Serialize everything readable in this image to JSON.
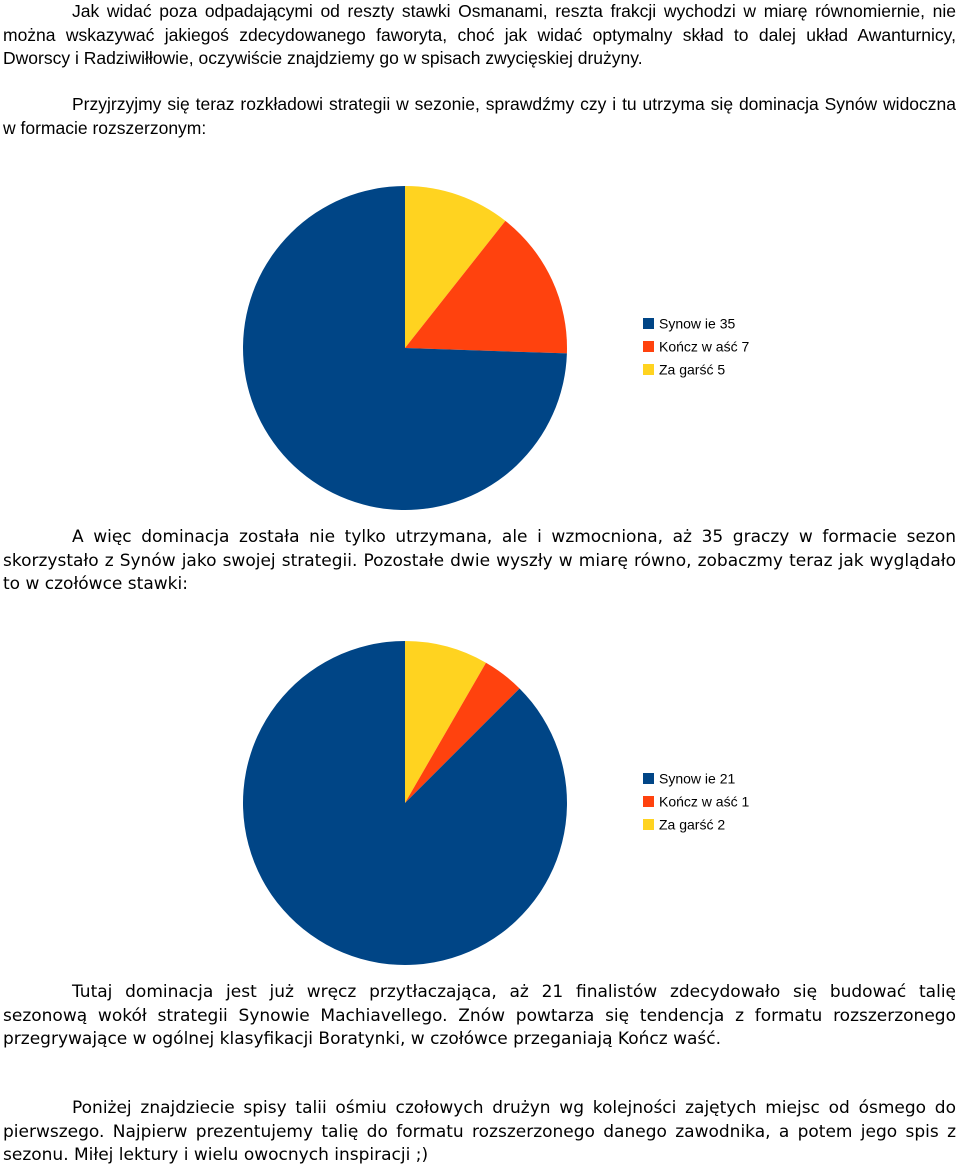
{
  "paragraphs": {
    "p1": "Jak widać poza odpadającymi od reszty stawki Osmanami, reszta frakcji wychodzi w miarę równomiernie, nie można wskazywać jakiegoś zdecydowanego faworyta, choć jak widać optymalny skład to dalej układ Awanturnicy, Dworscy i Radziwiłłowie, oczywiście znajdziemy go w spisach zwycięskiej drużyny.",
    "p2": "Przyjrzyjmy się teraz rozkładowi strategii w sezonie, sprawdźmy czy i tu utrzyma się dominacja Synów widoczna w formacie rozszerzonym:",
    "p3": "A więc dominacja została nie tylko utrzymana, ale i wzmocniona, aż 35 graczy w formacie sezon skorzystało z Synów jako swojej strategii. Pozostałe dwie wyszły w miarę równo, zobaczmy teraz jak wyglądało to w czołówce stawki:",
    "p4": "Tutaj dominacja jest już wręcz przytłaczająca, aż 21 finalistów zdecydowało się budować talię sezonową wokół strategii Synowie Machiavellego. Znów powtarza się tendencja z formatu rozszerzonego przegrywające w ogólnej klasyfikacji Boratynki, w czołówce przeganiają Kończ waść.",
    "p5": "Poniżej znajdziecie spisy talii ośmiu czołowych drużyn wg kolejności zajętych miejsc od ósmego do pierwszego. Najpierw prezentujemy talię do formatu rozszerzonego danego zawodnika, a potem jego spis z sezonu. Miłej lektury i wielu owocnych inspiracji ;)"
  },
  "chart_data": [
    {
      "type": "pie",
      "title": "",
      "categories": [
        "Synowie",
        "Kończ waść",
        "Za garść"
      ],
      "values": [
        35,
        7,
        5
      ],
      "legend_labels": [
        "Synow ie 35",
        "Kończ w aść 7",
        "Za garść 5"
      ],
      "colors": [
        "#004586",
        "#ff420e",
        "#ffd320"
      ],
      "legend": "right"
    },
    {
      "type": "pie",
      "title": "",
      "categories": [
        "Synowie",
        "Kończ waść",
        "Za garść"
      ],
      "values": [
        21,
        1,
        2
      ],
      "legend_labels": [
        "Synow ie 21",
        "Kończ w aść 1",
        "Za garść 2"
      ],
      "colors": [
        "#004586",
        "#ff420e",
        "#ffd320"
      ],
      "legend": "right"
    }
  ]
}
